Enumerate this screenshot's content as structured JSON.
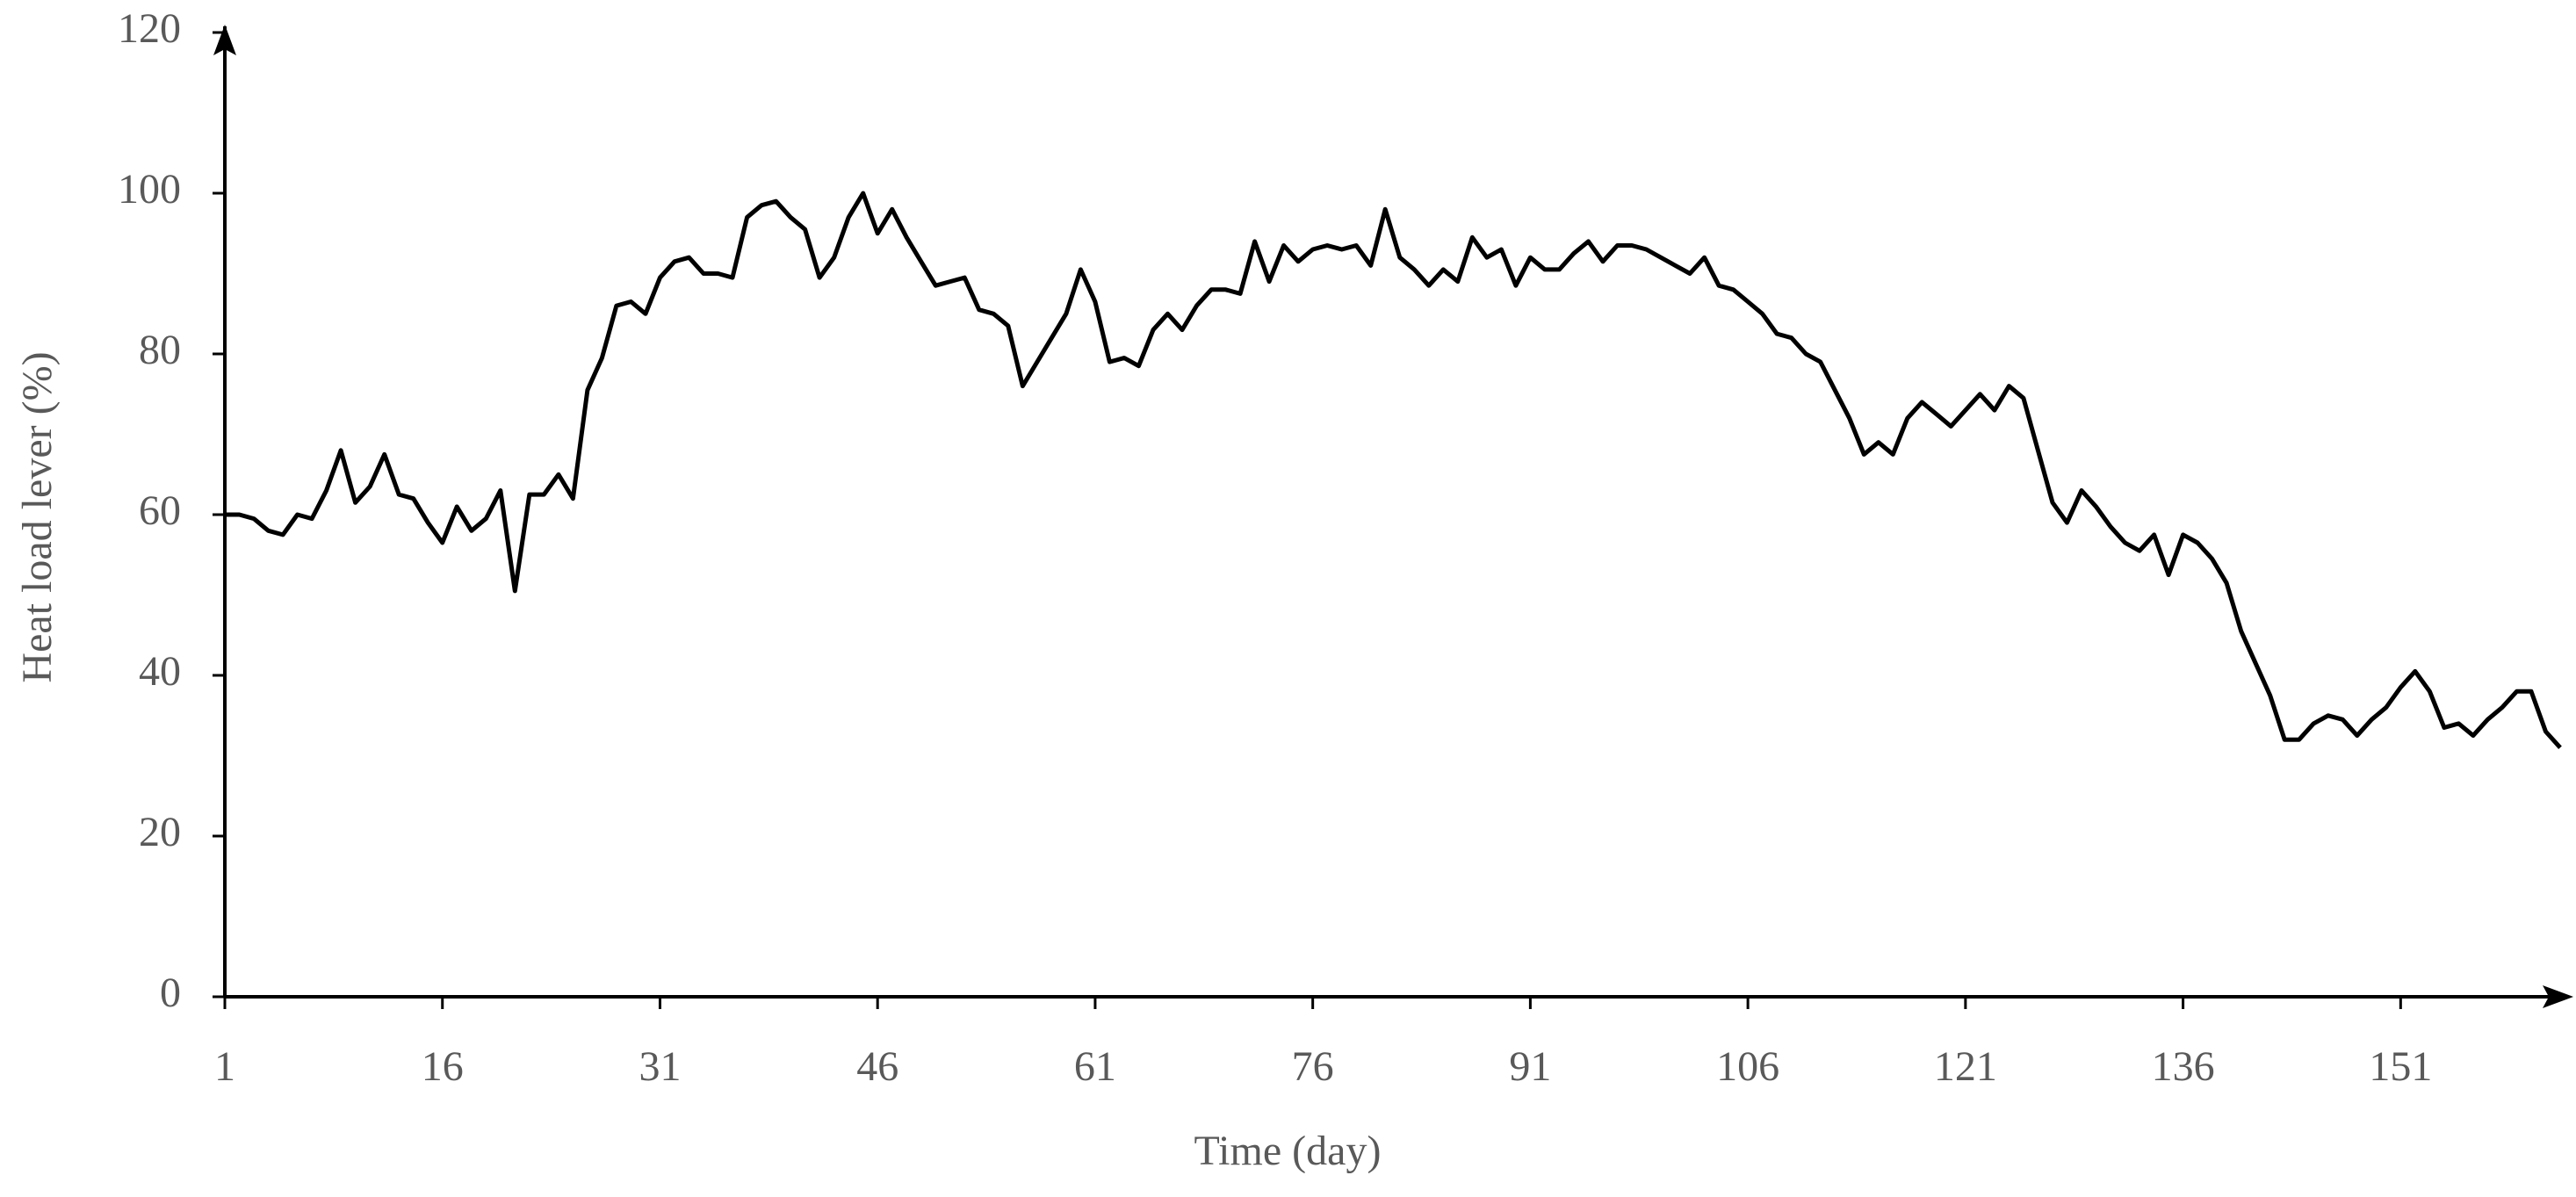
{
  "chart_data": {
    "type": "line",
    "xlabel": "Time (day)",
    "ylabel": "Heat load lever (%)",
    "x": [
      1,
      2,
      3,
      4,
      5,
      6,
      7,
      8,
      9,
      10,
      11,
      12,
      13,
      14,
      15,
      16,
      17,
      18,
      19,
      20,
      21,
      22,
      23,
      24,
      25,
      26,
      27,
      28,
      29,
      30,
      31,
      32,
      33,
      34,
      35,
      36,
      37,
      38,
      39,
      40,
      41,
      42,
      43,
      44,
      45,
      46,
      47,
      48,
      49,
      50,
      51,
      52,
      53,
      54,
      55,
      56,
      57,
      58,
      59,
      60,
      61,
      62,
      63,
      64,
      65,
      66,
      67,
      68,
      69,
      70,
      71,
      72,
      73,
      74,
      75,
      76,
      77,
      78,
      79,
      80,
      81,
      82,
      83,
      84,
      85,
      86,
      87,
      88,
      89,
      90,
      91,
      92,
      93,
      94,
      95,
      96,
      97,
      98,
      99,
      100,
      101,
      102,
      103,
      104,
      105,
      106,
      107,
      108,
      109,
      110,
      111,
      112,
      113,
      114,
      115,
      116,
      117,
      118,
      119,
      120,
      121,
      122,
      123,
      124,
      125,
      126,
      127,
      128,
      129,
      130,
      131,
      132,
      133,
      134,
      135,
      136,
      137,
      138,
      139,
      140,
      141,
      142,
      143,
      144,
      145,
      146,
      147,
      148,
      149,
      150,
      151,
      152,
      153,
      154,
      155,
      156,
      157,
      158,
      159,
      160,
      161,
      162
    ],
    "series": [
      {
        "color": "#000000",
        "values": [
          60,
          60,
          59.5,
          58,
          57.5,
          60,
          59.5,
          63,
          68,
          61.5,
          63.5,
          67.5,
          62.5,
          62,
          59,
          56.5,
          61,
          58,
          59.5,
          63,
          50.5,
          62.5,
          62.5,
          65,
          62,
          75.5,
          79.5,
          86,
          86.5,
          85,
          89.5,
          91.5,
          92,
          90,
          90,
          89.5,
          97,
          98.5,
          99,
          97,
          95.5,
          89.5,
          92,
          97,
          100,
          95,
          98,
          94.5,
          91.5,
          88.5,
          89,
          89.5,
          85.5,
          85,
          83.5,
          76,
          79,
          82,
          85,
          90.5,
          86.5,
          79,
          79.5,
          78.5,
          83,
          85,
          83,
          86,
          88,
          88,
          87.5,
          94,
          89,
          93.5,
          91.5,
          93,
          93.5,
          93,
          93.5,
          91,
          98,
          92,
          90.5,
          88.5,
          90.5,
          89,
          94.5,
          92,
          93,
          88.5,
          92,
          90.5,
          90.5,
          92.5,
          94,
          91.5,
          93.5,
          93.5,
          93,
          92,
          91,
          90,
          92,
          88.5,
          88,
          86.5,
          85,
          82.5,
          82,
          80,
          79,
          75.5,
          72,
          67.5,
          69,
          67.5,
          72,
          74,
          72.5,
          71,
          73,
          75,
          73,
          76,
          74.5,
          68,
          61.5,
          59,
          63,
          61,
          58.5,
          56.5,
          55.5,
          57.5,
          52.5,
          57.5,
          56.5,
          54.5,
          51.5,
          45.5,
          41.5,
          37.5,
          32,
          32,
          34,
          35,
          34.5,
          32.5,
          34.5,
          36,
          38.5,
          40.5,
          38,
          33.5,
          34,
          32.5,
          34.5,
          36,
          38,
          38,
          33,
          31
        ]
      }
    ],
    "xlim": [
      1,
      162
    ],
    "xticks": [
      1,
      16,
      31,
      46,
      61,
      76,
      91,
      106,
      121,
      136,
      151
    ],
    "ylim": [
      0,
      120
    ],
    "yticks": [
      0,
      20,
      40,
      60,
      80,
      100,
      120
    ]
  }
}
